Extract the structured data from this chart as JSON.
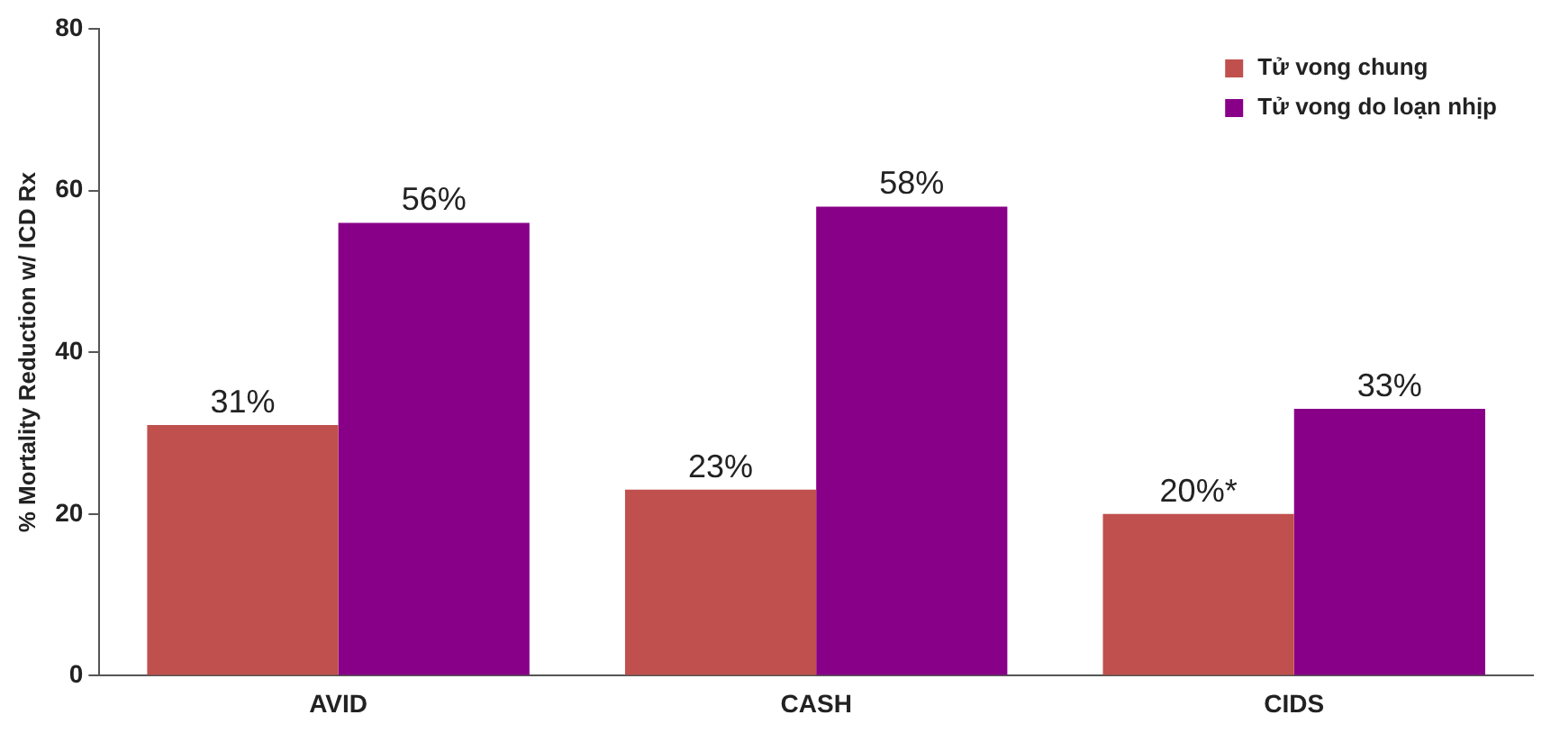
{
  "chart_data": {
    "type": "bar",
    "ylabel": "% Mortality Reduction w/ ICD Rx",
    "categories": [
      "AVID",
      "CASH",
      "CIDS"
    ],
    "series": [
      {
        "name": "Tử vong chung",
        "color": "#c0504d",
        "values": [
          31,
          23,
          20
        ],
        "value_labels": [
          "31%",
          "23%",
          "20%*"
        ]
      },
      {
        "name": "Tử vong do loạn nhịp",
        "color": "#880088",
        "values": [
          56,
          58,
          33
        ],
        "value_labels": [
          "56%",
          "58%",
          "33%"
        ]
      }
    ],
    "ylim": [
      0,
      80
    ],
    "yticks": [
      0,
      20,
      40,
      60,
      80
    ],
    "grid": false,
    "legend": "top right"
  }
}
